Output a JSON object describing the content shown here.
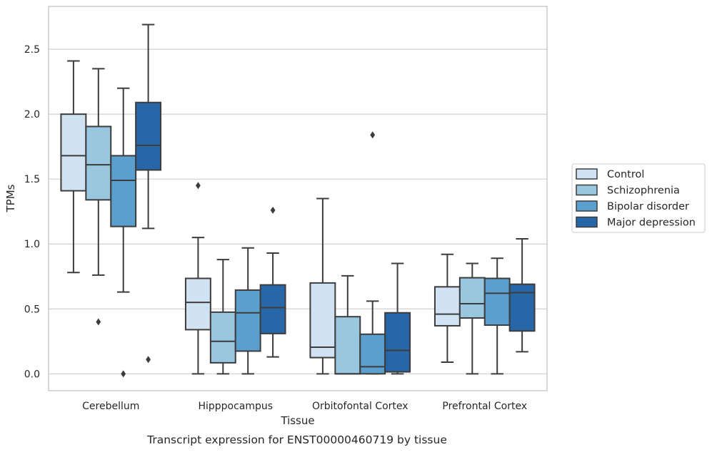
{
  "caption": "Transcript expression for ENST00000460719 by tissue",
  "chart_data": {
    "type": "boxplot",
    "xlabel": "Tissue",
    "ylabel": "TPMs",
    "ylim": [
      -0.13,
      2.83
    ],
    "yticks": [
      "0.0",
      "0.5",
      "1.0",
      "1.5",
      "2.0",
      "2.5"
    ],
    "ytick_values": [
      0,
      0.5,
      1.0,
      1.5,
      2.0,
      2.5
    ],
    "grid": "horizontal",
    "legend_position": "right",
    "categories": [
      "Cerebellum",
      "Hipppocampus",
      "Orbitofontal Cortex",
      "Prefrontal Cortex"
    ],
    "series": [
      {
        "name": "Control",
        "color": "#d1e2f2",
        "boxes": [
          {
            "whislo": 0.78,
            "q1": 1.41,
            "med": 1.68,
            "q3": 2.0,
            "whishi": 2.41,
            "fliers": []
          },
          {
            "whislo": 0.0,
            "q1": 0.34,
            "med": 0.55,
            "q3": 0.735,
            "whishi": 1.05,
            "fliers": [
              1.45
            ]
          },
          {
            "whislo": 0.0,
            "q1": 0.125,
            "med": 0.205,
            "q3": 0.7,
            "whishi": 1.35,
            "fliers": []
          },
          {
            "whislo": 0.09,
            "q1": 0.37,
            "med": 0.46,
            "q3": 0.67,
            "whishi": 0.92,
            "fliers": []
          }
        ]
      },
      {
        "name": "Schizophrenia",
        "color": "#9ac7e0",
        "boxes": [
          {
            "whislo": 0.76,
            "q1": 1.34,
            "med": 1.61,
            "q3": 1.905,
            "whishi": 2.35,
            "fliers": [
              0.4
            ]
          },
          {
            "whislo": 0.0,
            "q1": 0.085,
            "med": 0.25,
            "q3": 0.475,
            "whishi": 0.88,
            "fliers": []
          },
          {
            "whislo": 0.0,
            "q1": 0.0,
            "med": 0.0,
            "q3": 0.44,
            "whishi": 0.755,
            "fliers": []
          },
          {
            "whislo": 0.0,
            "q1": 0.43,
            "med": 0.54,
            "q3": 0.74,
            "whishi": 0.85,
            "fliers": []
          }
        ]
      },
      {
        "name": "Bipolar disorder",
        "color": "#5a9fcd",
        "boxes": [
          {
            "whislo": 0.63,
            "q1": 1.135,
            "med": 1.49,
            "q3": 1.68,
            "whishi": 2.2,
            "fliers": [
              0.0
            ]
          },
          {
            "whislo": 0.0,
            "q1": 0.175,
            "med": 0.47,
            "q3": 0.645,
            "whishi": 0.97,
            "fliers": []
          },
          {
            "whislo": 0.0,
            "q1": 0.0,
            "med": 0.055,
            "q3": 0.305,
            "whishi": 0.56,
            "fliers": [
              1.84
            ]
          },
          {
            "whislo": 0.0,
            "q1": 0.375,
            "med": 0.62,
            "q3": 0.735,
            "whishi": 0.89,
            "fliers": []
          }
        ]
      },
      {
        "name": "Major depression",
        "color": "#2767a8",
        "boxes": [
          {
            "whislo": 1.12,
            "q1": 1.57,
            "med": 1.76,
            "q3": 2.09,
            "whishi": 2.69,
            "fliers": [
              0.11
            ]
          },
          {
            "whislo": 0.13,
            "q1": 0.31,
            "med": 0.51,
            "q3": 0.685,
            "whishi": 0.93,
            "fliers": [
              1.26
            ]
          },
          {
            "whislo": 0.0,
            "q1": 0.015,
            "med": 0.18,
            "q3": 0.47,
            "whishi": 0.85,
            "fliers": []
          },
          {
            "whislo": 0.17,
            "q1": 0.33,
            "med": 0.625,
            "q3": 0.69,
            "whishi": 1.04,
            "fliers": []
          }
        ]
      }
    ]
  }
}
